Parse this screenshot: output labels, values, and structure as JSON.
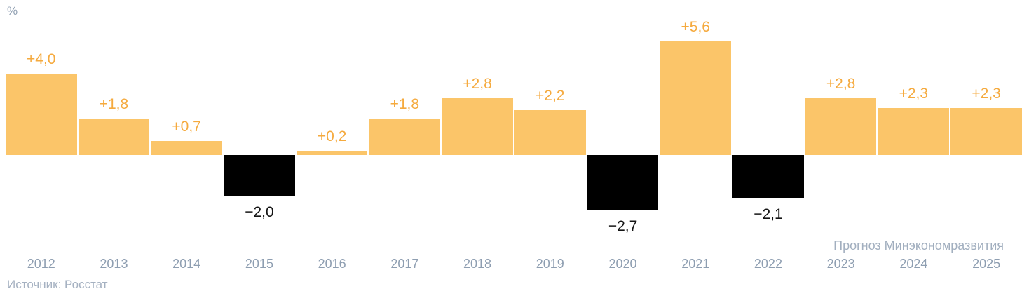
{
  "header": {
    "unit_label": "%"
  },
  "footer": {
    "forecast_note": "Прогноз Минэкономразвития",
    "source": "Источник: Росстат"
  },
  "chart_data": {
    "type": "bar",
    "title": "",
    "xlabel": "",
    "ylabel": "%",
    "ylim": [
      -3,
      6
    ],
    "grid": false,
    "legend": "none",
    "categories": [
      "2012",
      "2013",
      "2014",
      "2015",
      "2016",
      "2017",
      "2018",
      "2019",
      "2020",
      "2021",
      "2022",
      "2023",
      "2024",
      "2025"
    ],
    "values": [
      4.0,
      1.8,
      0.7,
      -2.0,
      0.2,
      1.8,
      2.8,
      2.2,
      -2.7,
      5.6,
      -2.1,
      2.8,
      2.3,
      2.3
    ],
    "value_labels": [
      "+4,0",
      "+1,8",
      "+0,7",
      "−2,0",
      "+0,2",
      "+1,8",
      "+2,8",
      "+2,2",
      "−2,7",
      "+5,6",
      "−2,1",
      "+2,8",
      "+2,3",
      "+2,3"
    ],
    "forecast_years": [
      "2023",
      "2024",
      "2025"
    ],
    "colors": {
      "positive_bar": "#FBC569",
      "negative_bar": "#000000",
      "positive_value_text": "#F5AA3E",
      "negative_value_text": "#141414",
      "year_text": "#8E9EB1",
      "forecast_note_text": "#A2AFBF",
      "source_text": "#A5B1C1",
      "unit_text": "#8E9EB1"
    }
  }
}
